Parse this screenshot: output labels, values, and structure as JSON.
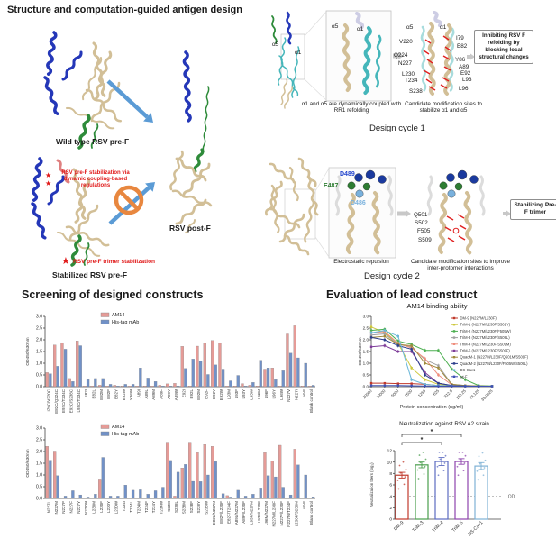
{
  "title": "Structure and computation-guided antigen design",
  "overview": {
    "wild_type_label": "Wild type RSV pre-F",
    "post_f_label": "RSV post-F",
    "stabilized_label": "Stabilized RSV pre-F",
    "stabilization_note": "RSV pre-F stabilization via dynamic coupling-based regulations",
    "trimer_note": "RSV pre-F trimer stabilization",
    "star_icon": "★",
    "arrow_color": "#5b9bd5",
    "prohibition_color": "#e8873f"
  },
  "cycle1": {
    "caption": "Design cycle 1",
    "alpha5": "α5",
    "alpha1": "α1",
    "coupling_note": "α1 and α5 are dynamically coupled with RR1 refolding",
    "sites_note": "Candidate modification sites to stabilize α1 and α5",
    "left_sites": [
      "V220",
      "Q224",
      "N227",
      "L230",
      "T234",
      "S238"
    ],
    "right_sites": [
      "I79",
      "E82",
      "Y86",
      "A89",
      "E92",
      "L93",
      "L96"
    ],
    "outcome": "Inhibiting RSV F refolding by blocking local structural changes"
  },
  "cycle2": {
    "caption": "Design cycle 2",
    "residue_d489": "D489",
    "residue_e487": "E487",
    "residue_d486": "D486",
    "repulsion_note": "Electrostatic repulsion",
    "sites": [
      "Q501",
      "S502",
      "F505",
      "S509"
    ],
    "sites_note": "Candidate modification sites to improve inter-protomer interactions",
    "outcome": "Stabilizing Pre-F trimer"
  },
  "screening": {
    "title": "Screening of designed constructs"
  },
  "evaluation": {
    "title": "Evaluation of lead construct"
  },
  "chart_data": [
    {
      "type": "bar",
      "title": "",
      "ylabel": "OD450/630nm",
      "ylim": [
        0,
        3
      ],
      "yticks": [
        0.0,
        0.5,
        1.0,
        1.5,
        2.0,
        2.5,
        3.0
      ],
      "legend_position": "top-inside",
      "categories": [
        "I79C/V220C",
        "E82C/Q224C",
        "E92C/T234C",
        "E92C/S238C",
        "L93C/T234C",
        "E82I",
        "E82L",
        "E82M",
        "E82F",
        "E82Y",
        "E82W",
        "Y86W",
        "A89I",
        "A89L",
        "A89M",
        "A89F",
        "A89Y",
        "A89W",
        "E92I",
        "E92L",
        "E92M",
        "E92F",
        "E92Y",
        "E92W",
        "L93M",
        "L93F",
        "L93Y",
        "L93W",
        "L96M",
        "L96F",
        "L96Y",
        "L96W",
        "N227V",
        "N227I",
        "wt-F",
        "Blank control"
      ],
      "series": [
        {
          "name": "AM14",
          "color": "#e59b97",
          "values": [
            0.6,
            1.78,
            1.88,
            0.35,
            1.95,
            0.03,
            0.03,
            0.06,
            0.03,
            0.06,
            0.03,
            0.03,
            0.03,
            0.03,
            0.03,
            0.06,
            0.12,
            0.14,
            1.72,
            0.03,
            1.73,
            1.85,
            1.97,
            1.85,
            0.03,
            0.03,
            0.13,
            0.06,
            0.03,
            0.75,
            0.8,
            0.03,
            2.25,
            2.6,
            0.03,
            0.03
          ]
        },
        {
          "name": "His-tag mAb",
          "color": "#7191c7",
          "values": [
            0.55,
            0.87,
            1.6,
            0.22,
            1.75,
            0.3,
            0.35,
            0.35,
            0.1,
            0.03,
            0.1,
            0.1,
            0.8,
            0.37,
            0.22,
            0.03,
            0.03,
            0.03,
            0.78,
            1.18,
            1.08,
            0.52,
            0.93,
            0.75,
            0.25,
            0.48,
            0.03,
            0.18,
            1.13,
            0.8,
            0.3,
            0.68,
            1.43,
            1.23,
            1.0,
            0.06
          ]
        }
      ]
    },
    {
      "type": "bar",
      "title": "",
      "ylabel": "OD450/630nm",
      "ylim": [
        0,
        3
      ],
      "yticks": [
        0.0,
        0.5,
        1.0,
        1.5,
        2.0,
        2.5,
        3.0
      ],
      "legend_position": "top-inside",
      "categories": [
        "N227L",
        "N227M",
        "N227P",
        "N227F",
        "N227Y",
        "N227W",
        "L230M",
        "L230F",
        "L230Y",
        "L230W",
        "T234I",
        "T234L",
        "T234M",
        "T234F",
        "T234Y",
        "T234W",
        "S238I",
        "S238L",
        "S238M",
        "S238F",
        "S238Y",
        "S238W",
        "E82L/N227M",
        "E82F/L230F",
        "E82F/T234F",
        "A89L/N227M",
        "A89F/L230F",
        "L93F/N227M",
        "L93F/L230F",
        "L96M/N227M",
        "N227M/L230F",
        "N227F/L230F",
        "N227M/T234F",
        "L230F/S238M",
        "wt-F",
        "Blank control"
      ],
      "series": [
        {
          "name": "AM14",
          "color": "#e59b97",
          "values": [
            2.22,
            2.02,
            0.03,
            0.03,
            0.03,
            0.03,
            0.03,
            0.83,
            0.03,
            0.03,
            0.03,
            0.03,
            0.03,
            0.03,
            0.03,
            0.03,
            2.4,
            0.1,
            1.3,
            2.4,
            1.95,
            2.3,
            2.22,
            0.03,
            0.12,
            0.03,
            0.03,
            0.03,
            0.03,
            1.95,
            1.6,
            2.27,
            0.03,
            2.1,
            0.03,
            0.03
          ]
        },
        {
          "name": "His-tag mAb",
          "color": "#7191c7",
          "values": [
            1.63,
            0.97,
            0.1,
            0.33,
            0.15,
            0.06,
            0.18,
            1.75,
            0.1,
            0.1,
            0.57,
            0.35,
            0.37,
            0.18,
            0.33,
            0.48,
            1.62,
            1.12,
            1.45,
            0.73,
            0.72,
            1.0,
            1.57,
            0.2,
            0.06,
            0.35,
            0.1,
            0.18,
            0.45,
            0.97,
            0.92,
            0.48,
            0.15,
            1.43,
            1.0,
            0.07
          ]
        }
      ]
    },
    {
      "type": "line",
      "title": "AM14 binding ability",
      "xlabel": "Protein concentration (ng/ml)",
      "ylabel": "OD450/630nm",
      "ylim": [
        0,
        3
      ],
      "yticks": [
        0.0,
        0.5,
        1.0,
        1.5,
        2.0,
        2.5,
        3.0
      ],
      "x_categories": [
        "20000",
        "10000",
        "5000",
        "2500",
        "1250",
        "625",
        "312.5",
        "156.25",
        "78.125",
        "39.0625"
      ],
      "legend_position": "right",
      "series": [
        {
          "name": "DM-9 (N227M/L230F)",
          "color": "#c0392b",
          "values": [
            0.15,
            0.15,
            0.13,
            0.13,
            0.1,
            0.05,
            0.03,
            0.02,
            0.02,
            0.02
          ]
        },
        {
          "name": "TriM-1 (N227M/L230F/S502Y)",
          "color": "#cdc83d",
          "values": [
            2.55,
            2.3,
            1.85,
            0.8,
            0.3,
            0.1,
            0.05,
            0.03,
            0.02,
            0.02
          ]
        },
        {
          "name": "TriM-2 (N227M/L230F/F505W)",
          "color": "#4caf50",
          "values": [
            2.4,
            2.45,
            1.95,
            1.8,
            1.55,
            1.55,
            0.75,
            0.3,
            0.05,
            0.03
          ]
        },
        {
          "name": "TriM-3 (N227M/L230F/S509L)",
          "color": "#a0a0a0",
          "values": [
            2.2,
            2.25,
            1.8,
            1.7,
            1.15,
            0.9,
            0.1,
            0.05,
            0.03,
            0.02
          ]
        },
        {
          "name": "TriM-4 (N227M/L230F/S509M)",
          "color": "#ef8e7d",
          "values": [
            2.3,
            2.35,
            1.85,
            1.65,
            1.2,
            0.5,
            0.08,
            0.04,
            0.02,
            0.02
          ]
        },
        {
          "name": "TriM-5 (N227M/L230F/S509F)",
          "color": "#7d3c98",
          "values": [
            1.7,
            1.75,
            1.5,
            1.5,
            0.6,
            0.15,
            0.05,
            0.03,
            0.02,
            0.02
          ]
        },
        {
          "name": "QuadM-1 (N227M/L230F/Q501M/S509F)",
          "color": "#a08a3c",
          "values": [
            2.1,
            2.15,
            1.8,
            1.75,
            1.0,
            0.8,
            0.1,
            0.05,
            0.03,
            0.02
          ]
        },
        {
          "name": "QuadM-2 (N227M/L230F/F505W/S509L)",
          "color": "#2c3e8c",
          "values": [
            2.1,
            2.0,
            1.75,
            1.6,
            0.5,
            0.15,
            0.05,
            0.03,
            0.02,
            0.02
          ]
        },
        {
          "name": "DS-Cav1",
          "color": "#6ab7d8",
          "values": [
            2.3,
            2.4,
            2.15,
            0.3,
            0.1,
            0.05,
            0.03,
            0.02,
            0.02,
            0.02
          ]
        },
        {
          "name": "wt-F",
          "color": "#3f51b5",
          "values": [
            0.05,
            0.05,
            0.05,
            0.04,
            0.03,
            0.02,
            0.02,
            0.02,
            0.02,
            0.02
          ]
        }
      ]
    },
    {
      "type": "bar",
      "title": "Neutralization against RSV A2 strain",
      "ylabel": "Neutralization titers (log₂)",
      "ylim": [
        0,
        12
      ],
      "yticks": [
        0,
        2,
        4,
        6,
        8,
        10,
        12
      ],
      "categories": [
        "DM-9",
        "TriM-3",
        "TriM-4",
        "TriM-5",
        "DS-Cav1"
      ],
      "values": [
        7.7,
        9.5,
        10.1,
        10.1,
        9.3
      ],
      "errors": [
        0.5,
        0.5,
        0.7,
        0.5,
        0.6
      ],
      "colors": [
        "#c0392b",
        "#4a9e4d",
        "#5c6bc0",
        "#8e44ad",
        "#7fb2d5"
      ],
      "lod": {
        "value": 4,
        "label": "LOD"
      },
      "significance": [
        {
          "from": 0,
          "to": 3,
          "label": "*"
        },
        {
          "from": 0,
          "to": 2,
          "label": "*"
        }
      ]
    }
  ]
}
